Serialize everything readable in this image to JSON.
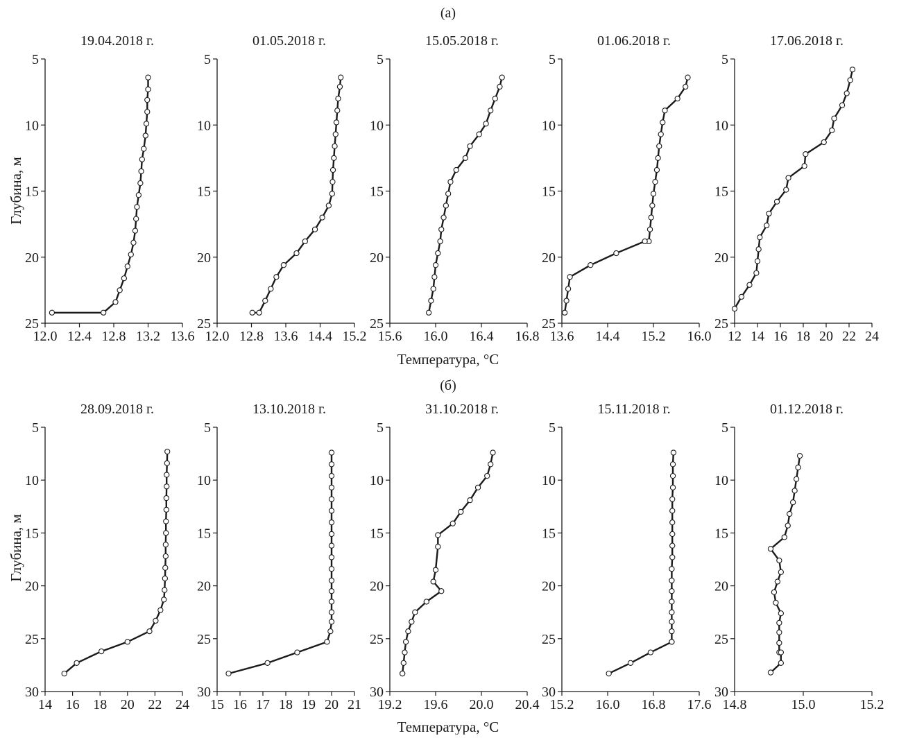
{
  "panel_a_label": "(а)",
  "panel_b_label": "(б)",
  "row_a_xlabel": "Температура, °C",
  "row_b_xlabel": "Температура, °C",
  "row_a_ylabel": "Глубина, м",
  "row_b_ylabel": "Глубина, м",
  "colors": {
    "line": "#1a1a1a",
    "marker_fill": "#ffffff",
    "axis": "#1a1a1a"
  },
  "chart_data": [
    {
      "type": "line",
      "row": "a",
      "title": "19.04.2018 г.",
      "xlim": [
        12.0,
        13.6
      ],
      "ylim": [
        5,
        25
      ],
      "y_inverted": true,
      "xticks": [
        "12.0",
        "12.4",
        "12.8",
        "13.2",
        "13.6"
      ],
      "xtick_values": [
        12.0,
        12.4,
        12.8,
        13.2,
        13.6
      ],
      "yticks": [
        5,
        10,
        15,
        20,
        25
      ],
      "series": [
        {
          "x": [
            13.2,
            13.2,
            13.19,
            13.19,
            13.18,
            13.17,
            13.15,
            13.13,
            13.12,
            13.11,
            13.09,
            13.07,
            13.06,
            13.05,
            13.03,
            13.0,
            12.96,
            12.92,
            12.87,
            12.82,
            12.68,
            12.08
          ],
          "y": [
            6.4,
            7.3,
            8.1,
            9.0,
            9.9,
            10.8,
            11.8,
            12.6,
            13.5,
            14.4,
            15.3,
            16.2,
            17.1,
            18.0,
            18.9,
            19.8,
            20.7,
            21.6,
            22.5,
            23.4,
            24.2,
            24.2
          ]
        }
      ]
    },
    {
      "type": "line",
      "row": "a",
      "title": "01.05.2018 г.",
      "xlim": [
        12.0,
        15.2
      ],
      "ylim": [
        5,
        25
      ],
      "y_inverted": true,
      "xticks": [
        "12.0",
        "12.8",
        "13.6",
        "14.4",
        "15.2"
      ],
      "xtick_values": [
        12.0,
        12.8,
        13.6,
        14.4,
        15.2
      ],
      "yticks": [
        5,
        10,
        15,
        20,
        25
      ],
      "series": [
        {
          "x": [
            14.88,
            14.86,
            14.82,
            14.8,
            14.78,
            14.76,
            14.74,
            14.72,
            14.7,
            14.69,
            14.68,
            14.6,
            14.45,
            14.28,
            14.05,
            13.85,
            13.55,
            13.38,
            13.25,
            13.12,
            12.98,
            12.82
          ],
          "y": [
            6.4,
            7.1,
            8.0,
            8.9,
            9.8,
            10.7,
            11.6,
            12.5,
            13.4,
            14.3,
            15.2,
            16.1,
            17.0,
            17.9,
            18.8,
            19.7,
            20.6,
            21.5,
            22.4,
            23.3,
            24.2,
            24.2
          ]
        }
      ]
    },
    {
      "type": "line",
      "row": "a",
      "title": "15.05.2018 г.",
      "xlim": [
        15.6,
        16.8
      ],
      "ylim": [
        5,
        25
      ],
      "y_inverted": true,
      "xticks": [
        "15.6",
        "16.0",
        "16.4",
        "16.8"
      ],
      "xtick_values": [
        15.6,
        16.0,
        16.4,
        16.8
      ],
      "yticks": [
        5,
        10,
        15,
        20,
        25
      ],
      "series": [
        {
          "x": [
            16.58,
            16.56,
            16.52,
            16.48,
            16.44,
            16.38,
            16.3,
            16.26,
            16.18,
            16.13,
            16.11,
            16.09,
            16.07,
            16.05,
            16.04,
            16.02,
            16.0,
            15.99,
            15.98,
            15.96,
            15.94
          ],
          "y": [
            6.4,
            7.1,
            8.0,
            8.9,
            9.9,
            10.7,
            11.6,
            12.5,
            13.4,
            14.3,
            15.2,
            16.1,
            17.0,
            17.9,
            18.8,
            19.7,
            20.6,
            21.5,
            22.4,
            23.3,
            24.2
          ]
        }
      ]
    },
    {
      "type": "line",
      "row": "a",
      "title": "01.06.2018 г.",
      "xlim": [
        13.6,
        16.0
      ],
      "ylim": [
        5,
        25
      ],
      "y_inverted": true,
      "xticks": [
        "13.6",
        "14.4",
        "15.2",
        "16.0"
      ],
      "xtick_values": [
        13.6,
        14.4,
        15.2,
        16.0
      ],
      "yticks": [
        5,
        10,
        15,
        20,
        25
      ],
      "series": [
        {
          "x": [
            15.8,
            15.76,
            15.62,
            15.4,
            15.36,
            15.33,
            15.3,
            15.28,
            15.26,
            15.23,
            15.2,
            15.18,
            15.16,
            15.14,
            15.12,
            15.05,
            14.55,
            14.1,
            13.74,
            13.71,
            13.68,
            13.65
          ],
          "y": [
            6.4,
            7.1,
            8.0,
            8.9,
            9.8,
            10.7,
            11.6,
            12.5,
            13.4,
            14.3,
            15.2,
            16.1,
            17.0,
            17.9,
            18.8,
            18.8,
            19.7,
            20.6,
            21.5,
            22.4,
            23.3,
            24.2
          ]
        }
      ]
    },
    {
      "type": "line",
      "row": "a",
      "title": "17.06.2018 г.",
      "xlim": [
        12,
        24
      ],
      "ylim": [
        5,
        25
      ],
      "y_inverted": true,
      "xticks": [
        "12",
        "14",
        "16",
        "18",
        "20",
        "22",
        "24"
      ],
      "xtick_values": [
        12,
        14,
        16,
        18,
        20,
        22,
        24
      ],
      "yticks": [
        5,
        10,
        15,
        20,
        25
      ],
      "series": [
        {
          "x": [
            22.3,
            22.1,
            21.8,
            21.4,
            20.7,
            20.5,
            19.8,
            18.2,
            18.1,
            16.7,
            16.5,
            15.7,
            15.0,
            14.8,
            14.2,
            14.1,
            14.0,
            13.9,
            13.3,
            12.6,
            12.0
          ],
          "y": [
            5.8,
            6.6,
            7.6,
            8.5,
            9.5,
            10.4,
            11.3,
            12.2,
            13.1,
            14.0,
            14.9,
            15.8,
            16.7,
            17.6,
            18.5,
            19.4,
            20.3,
            21.2,
            22.1,
            23.0,
            23.9
          ]
        }
      ]
    },
    {
      "type": "line",
      "row": "b",
      "title": "28.09.2018 г.",
      "xlim": [
        14,
        24
      ],
      "ylim": [
        5,
        30
      ],
      "y_inverted": true,
      "xticks": [
        "14",
        "16",
        "18",
        "20",
        "22",
        "24"
      ],
      "xtick_values": [
        14,
        16,
        18,
        20,
        22,
        24
      ],
      "yticks": [
        5,
        10,
        15,
        20,
        25,
        30
      ],
      "series": [
        {
          "x": [
            22.9,
            22.88,
            22.85,
            22.85,
            22.83,
            22.83,
            22.8,
            22.8,
            22.78,
            22.78,
            22.75,
            22.73,
            22.7,
            22.65,
            22.4,
            22.05,
            21.6,
            20.0,
            18.1,
            16.3,
            15.4
          ],
          "y": [
            7.3,
            8.4,
            9.5,
            10.6,
            11.7,
            12.8,
            13.9,
            15.0,
            16.1,
            17.2,
            18.3,
            19.3,
            20.4,
            21.3,
            22.3,
            23.3,
            24.3,
            25.3,
            26.2,
            27.3,
            28.3
          ]
        }
      ]
    },
    {
      "type": "line",
      "row": "b",
      "title": "13.10.2018 г.",
      "xlim": [
        15,
        21
      ],
      "ylim": [
        5,
        30
      ],
      "y_inverted": true,
      "xticks": [
        "15",
        "16",
        "17",
        "18",
        "19",
        "20",
        "21"
      ],
      "xtick_values": [
        15,
        16,
        17,
        18,
        19,
        20,
        21
      ],
      "yticks": [
        5,
        10,
        15,
        20,
        25,
        30
      ],
      "series": [
        {
          "x": [
            20.0,
            20.0,
            20.0,
            20.0,
            20.0,
            20.0,
            20.0,
            20.0,
            20.0,
            20.0,
            20.0,
            20.0,
            20.0,
            20.0,
            20.0,
            20.0,
            19.95,
            19.8,
            18.5,
            17.2,
            15.5
          ],
          "y": [
            7.4,
            8.5,
            9.6,
            10.7,
            11.8,
            12.9,
            14.0,
            15.1,
            16.2,
            17.3,
            18.4,
            19.5,
            20.5,
            21.5,
            22.5,
            23.4,
            24.3,
            25.3,
            26.3,
            27.3,
            28.3
          ]
        }
      ]
    },
    {
      "type": "line",
      "row": "b",
      "title": "31.10.2018 г.",
      "xlim": [
        19.2,
        20.4
      ],
      "ylim": [
        5,
        30
      ],
      "y_inverted": true,
      "xticks": [
        "19.2",
        "19.6",
        "20.0",
        "20.4"
      ],
      "xtick_values": [
        19.2,
        19.6,
        20.0,
        20.4
      ],
      "yticks": [
        5,
        10,
        15,
        20,
        25,
        30
      ],
      "series": [
        {
          "x": [
            20.1,
            20.08,
            20.05,
            19.97,
            19.9,
            19.82,
            19.75,
            19.62,
            19.62,
            19.6,
            19.58,
            19.65,
            19.52,
            19.42,
            19.39,
            19.36,
            19.34,
            19.33,
            19.32,
            19.31,
            19.31
          ],
          "y": [
            7.4,
            8.5,
            9.6,
            10.7,
            11.9,
            13.0,
            14.1,
            15.2,
            16.3,
            18.5,
            19.6,
            20.5,
            21.5,
            22.5,
            23.4,
            24.3,
            25.3,
            26.3,
            27.3,
            28.3,
            28.3
          ]
        }
      ]
    },
    {
      "type": "line",
      "row": "b",
      "title": "15.11.2018 г.",
      "xlim": [
        15.2,
        17.6
      ],
      "ylim": [
        5,
        30
      ],
      "y_inverted": true,
      "xticks": [
        "15.2",
        "16.0",
        "16.8",
        "17.6"
      ],
      "xtick_values": [
        15.2,
        16.0,
        16.8,
        17.6
      ],
      "yticks": [
        5,
        10,
        15,
        20,
        25,
        30
      ],
      "series": [
        {
          "x": [
            17.15,
            17.14,
            17.14,
            17.14,
            17.13,
            17.13,
            17.13,
            17.13,
            17.13,
            17.13,
            17.12,
            17.12,
            17.12,
            17.12,
            17.12,
            17.12,
            17.12,
            17.12,
            17.12,
            16.75,
            16.4,
            16.02
          ],
          "y": [
            7.4,
            8.5,
            9.6,
            10.7,
            11.8,
            12.9,
            14.0,
            15.1,
            16.2,
            17.3,
            18.4,
            19.5,
            20.5,
            21.5,
            22.5,
            23.4,
            24.3,
            25.3,
            25.3,
            26.3,
            27.3,
            28.3
          ]
        }
      ]
    },
    {
      "type": "line",
      "row": "b",
      "title": "01.12.2018 г.",
      "xlim": [
        14.8,
        15.2
      ],
      "ylim": [
        5,
        30
      ],
      "y_inverted": true,
      "xticks": [
        "14.8",
        "15.0",
        "15.2"
      ],
      "xtick_values": [
        14.8,
        15.0,
        15.2
      ],
      "yticks": [
        5,
        10,
        15,
        20,
        25,
        30
      ],
      "series": [
        {
          "x": [
            14.99,
            14.985,
            14.98,
            14.975,
            14.97,
            14.96,
            14.955,
            14.945,
            14.905,
            14.93,
            14.935,
            14.925,
            14.915,
            14.92,
            14.935,
            14.93,
            14.93,
            14.93,
            14.93,
            14.935,
            14.935,
            14.905
          ],
          "y": [
            7.7,
            8.8,
            9.9,
            11.0,
            12.1,
            13.2,
            14.3,
            15.4,
            16.5,
            17.6,
            18.7,
            19.6,
            20.6,
            21.6,
            22.6,
            23.5,
            24.4,
            25.4,
            26.3,
            26.3,
            27.3,
            28.2
          ]
        }
      ]
    }
  ]
}
